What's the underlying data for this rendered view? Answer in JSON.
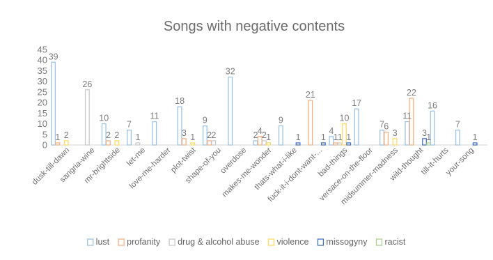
{
  "chart_data": {
    "type": "bar",
    "title": "Songs with negative contents",
    "ylim": [
      0,
      45
    ],
    "yticks": [
      0,
      5,
      10,
      15,
      20,
      25,
      30,
      35,
      40,
      45
    ],
    "grid": false,
    "legend_position": "bottom",
    "categories": [
      "dusk-till-dawn",
      "sangria-wine",
      "mr-brightside",
      "let-me",
      "love-me-harder",
      "plot-twist",
      "shape-of-you",
      "overdose",
      "makes-me-wonder",
      "thats-what-i-like",
      "fuck-it-i-dont-want-...",
      "bad-things",
      "versace-on-the-floor",
      "midsummer-madness",
      "wild-thought",
      "till-it-hurts",
      "your-song"
    ],
    "series": [
      {
        "name": "lust",
        "color": "#9dc3e6",
        "values": [
          39,
          0,
          10,
          7,
          11,
          18,
          9,
          32,
          2,
          9,
          0,
          4,
          17,
          7,
          11,
          16,
          7
        ]
      },
      {
        "name": "profanity",
        "color": "#f4b183",
        "values": [
          1,
          0,
          2,
          0,
          0,
          3,
          2,
          0,
          4,
          0,
          21,
          1,
          0,
          6,
          22,
          0,
          0
        ]
      },
      {
        "name": "drug & alcohol abuse",
        "color": "#c9c9c9",
        "values": [
          0,
          26,
          0,
          1,
          0,
          0,
          2,
          0,
          2,
          0,
          0,
          1,
          0,
          0,
          0,
          0,
          0
        ]
      },
      {
        "name": "violence",
        "color": "#ffd966",
        "values": [
          2,
          0,
          2,
          0,
          0,
          1,
          0,
          0,
          1,
          0,
          0,
          10,
          0,
          3,
          0,
          0,
          0
        ]
      },
      {
        "name": "missogyny",
        "color": "#4472c4",
        "values": [
          0,
          0,
          0,
          0,
          0,
          0,
          0,
          0,
          0,
          1,
          1,
          1,
          0,
          0,
          3,
          0,
          1
        ]
      },
      {
        "name": "racist",
        "color": "#a9d18e",
        "values": [
          0,
          0,
          0,
          0,
          0,
          0,
          0,
          0,
          0,
          0,
          0,
          0,
          0,
          0,
          1,
          0,
          0
        ]
      }
    ]
  }
}
